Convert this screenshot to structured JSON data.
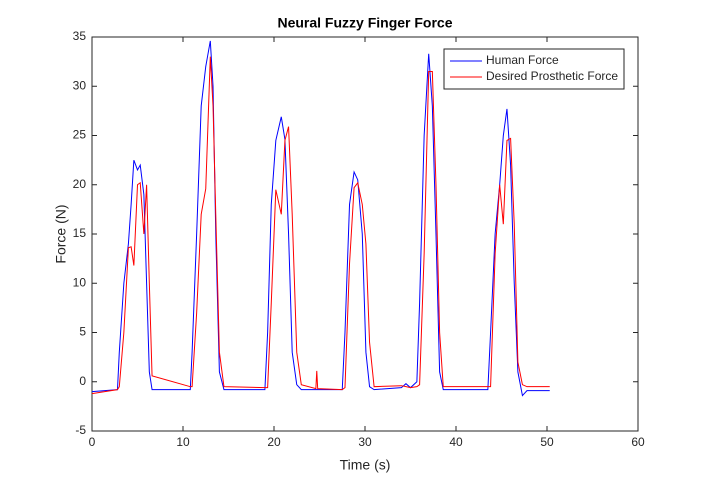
{
  "chart_data": {
    "type": "line",
    "title": "Neural Fuzzy Finger Force",
    "x_label": "Time (s)",
    "y_label": "Force (N)",
    "x": [
      0,
      2.8,
      3.0,
      3.5,
      4.0,
      4.3,
      4.6,
      5.0,
      5.3,
      5.7,
      6.0,
      6.3,
      6.6,
      10.8,
      11.0,
      11.5,
      12.0,
      12.5,
      13.0,
      13.3,
      13.6,
      14.0,
      14.5,
      19.0,
      19.3,
      19.7,
      20.2,
      20.8,
      21.2,
      21.6,
      22.0,
      22.5,
      23,
      24.6,
      24.7,
      24.8,
      27.5,
      27.8,
      28.3,
      28.8,
      29.2,
      29.7,
      30.1,
      30.5,
      31,
      34,
      34.5,
      35.0,
      35.7,
      36.0,
      36.5,
      37.0,
      37.4,
      37.8,
      38.2,
      38.6,
      43.5,
      43.8,
      44.3,
      44.8,
      45.2,
      45.6,
      46.0,
      46.4,
      46.8,
      47.3,
      47.8,
      50.3
    ],
    "series": [
      {
        "name": "Human Force",
        "color": "#0000ff",
        "values": [
          -1.0,
          -0.8,
          3,
          10,
          14,
          18,
          22.5,
          21.5,
          22,
          19,
          10,
          1,
          -0.8,
          -0.8,
          3,
          15,
          28,
          32,
          34.6,
          30,
          15,
          1,
          -0.8,
          -0.8,
          5,
          18,
          24.5,
          26.9,
          24.6,
          15,
          3,
          -0.3,
          -0.8,
          -0.8,
          -0.8,
          -0.8,
          -0.8,
          5,
          18,
          21.3,
          20.5,
          15,
          3,
          -0.5,
          -0.8,
          -0.6,
          -0.2,
          -0.6,
          0,
          8,
          25,
          33.3,
          28,
          15,
          1,
          -0.8,
          -0.8,
          5,
          15,
          20,
          25,
          27.7,
          22,
          10,
          1,
          -1.4,
          -0.9,
          -0.9
        ]
      },
      {
        "name": "Desired Prosthetic Force",
        "color": "#ff0000",
        "values": [
          -1.2,
          -0.8,
          -0.5,
          5,
          13.6,
          13.7,
          11.8,
          20,
          20.2,
          15,
          20,
          10,
          0.6,
          -0.5,
          -0.5,
          7,
          17,
          19.6,
          33,
          28,
          17,
          3,
          -0.5,
          -0.6,
          -0.6,
          8,
          19.5,
          17,
          24.5,
          25.9,
          17,
          3,
          -0.3,
          -0.7,
          1.1,
          -0.7,
          -0.8,
          -0.6,
          12,
          19.7,
          20.2,
          18,
          14,
          4,
          -0.5,
          -0.4,
          -0.5,
          -0.6,
          -0.5,
          -0.3,
          13,
          31.5,
          31.5,
          20,
          5,
          -0.5,
          -0.5,
          -0.5,
          13,
          20,
          16,
          24.5,
          24.7,
          16,
          2,
          -0.3,
          -0.5,
          -0.5
        ]
      }
    ],
    "xlim": [
      0,
      60
    ],
    "xticks": [
      0,
      10,
      20,
      30,
      40,
      50,
      60
    ],
    "ylim": [
      -5,
      35
    ],
    "yticks": [
      -5,
      0,
      5,
      10,
      15,
      20,
      25,
      30,
      35
    ],
    "legend": "northeast"
  }
}
